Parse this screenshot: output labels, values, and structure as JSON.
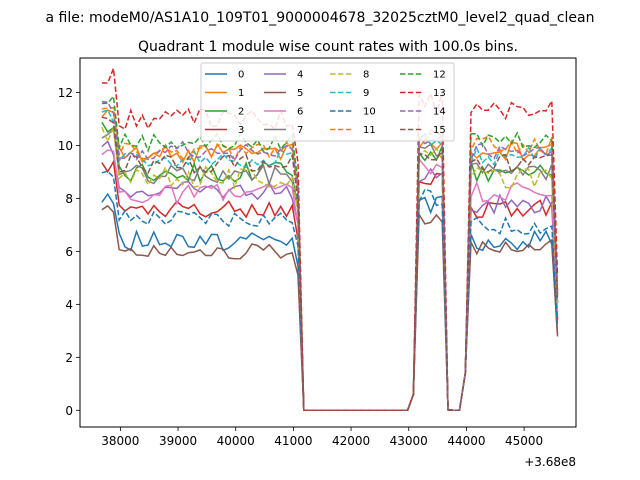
{
  "chart_data": {
    "type": "line",
    "suptitle": "a file: modeM0/AS1A10_109T01_9000004678_32025cztM0_level2_quad_clean",
    "title": "Quadrant 1 module wise count rates with 100.0s bins.",
    "xlabel": "",
    "ylabel": "",
    "x_offset_label": "+3.68e8",
    "xlim": [
      37300,
      45900
    ],
    "ylim": [
      -0.63,
      13.3
    ],
    "x_ticks": [
      38000,
      39000,
      40000,
      41000,
      42000,
      43000,
      44000,
      45000
    ],
    "x_tick_labels": [
      "38000",
      "39000",
      "40000",
      "41000",
      "42000",
      "43000",
      "44000",
      "45000"
    ],
    "y_ticks": [
      0,
      2,
      4,
      6,
      8,
      10,
      12
    ],
    "y_tick_labels": [
      "0",
      "2",
      "4",
      "6",
      "8",
      "10",
      "12"
    ],
    "grid": false,
    "legend_position": "top-center",
    "legend_columns": 4,
    "x": [
      37680,
      37780,
      37880,
      37980,
      38080,
      38180,
      38280,
      38380,
      38480,
      38580,
      38680,
      38780,
      38880,
      38980,
      39080,
      39180,
      39280,
      39380,
      39480,
      39580,
      39680,
      39780,
      39880,
      39980,
      40080,
      40180,
      40280,
      40380,
      40480,
      40580,
      40680,
      40780,
      40880,
      40980,
      41080,
      41180,
      41280,
      41380,
      41480,
      41580,
      41680,
      41780,
      41880,
      41980,
      42080,
      42180,
      42280,
      42380,
      42480,
      42580,
      42680,
      42780,
      42880,
      42980,
      43080,
      43180,
      43280,
      43380,
      43480,
      43580,
      43680,
      43780,
      43880,
      43980,
      44080,
      44180,
      44280,
      44380,
      44480,
      44580,
      44680,
      44780,
      44880,
      44980,
      45080,
      45180,
      45280,
      45380,
      45480,
      45580
    ],
    "series": [
      {
        "name": "0",
        "color": "#1f77b4",
        "dash": "solid",
        "base": 6.4,
        "level2": 7.8,
        "level3": 6.4,
        "amp": 0.38,
        "seed": 0
      },
      {
        "name": "1",
        "color": "#ff7f0e",
        "dash": "solid",
        "base": 9.7,
        "level2": 9.9,
        "level3": 9.8,
        "amp": 0.35,
        "seed": 1
      },
      {
        "name": "2",
        "color": "#2ca02c",
        "dash": "solid",
        "base": 9.0,
        "level2": 9.8,
        "level3": 9.0,
        "amp": 0.4,
        "seed": 2
      },
      {
        "name": "3",
        "color": "#d62728",
        "dash": "solid",
        "base": 7.6,
        "level2": 8.8,
        "level3": 7.6,
        "amp": 0.35,
        "seed": 3
      },
      {
        "name": "4",
        "color": "#9467bd",
        "dash": "solid",
        "base": 8.3,
        "level2": 8.9,
        "level3": 7.8,
        "amp": 0.35,
        "seed": 4
      },
      {
        "name": "5",
        "color": "#8c564b",
        "dash": "solid",
        "base": 6.0,
        "level2": 7.1,
        "level3": 6.2,
        "amp": 0.3,
        "seed": 5
      },
      {
        "name": "6",
        "color": "#e377c2",
        "dash": "solid",
        "base": 8.2,
        "level2": 9.2,
        "level3": 8.2,
        "amp": 0.4,
        "seed": 6
      },
      {
        "name": "7",
        "color": "#7f7f7f",
        "dash": "solid",
        "base": 8.9,
        "level2": 9.8,
        "level3": 9.0,
        "amp": 0.35,
        "seed": 7
      },
      {
        "name": "8",
        "color": "#bcbd22",
        "dash": "dashed",
        "base": 8.8,
        "level2": 9.6,
        "level3": 8.8,
        "amp": 0.4,
        "seed": 8
      },
      {
        "name": "9",
        "color": "#17becf",
        "dash": "dashed",
        "base": 9.5,
        "level2": 10.2,
        "level3": 9.6,
        "amp": 0.35,
        "seed": 9
      },
      {
        "name": "10",
        "color": "#1f77b4",
        "dash": "dashed",
        "base": 7.3,
        "level2": 8.0,
        "level3": 7.0,
        "amp": 0.35,
        "seed": 10
      },
      {
        "name": "11",
        "color": "#ff7f0e",
        "dash": "dashed",
        "base": 9.8,
        "level2": 10.5,
        "level3": 10.0,
        "amp": 0.35,
        "seed": 11
      },
      {
        "name": "12",
        "color": "#2ca02c",
        "dash": "dashed",
        "base": 10.1,
        "level2": 10.6,
        "level3": 10.2,
        "amp": 0.35,
        "seed": 12
      },
      {
        "name": "13",
        "color": "#d62728",
        "dash": "dashed",
        "base": 11.0,
        "level2": 11.6,
        "level3": 11.3,
        "amp": 0.4,
        "seed": 13
      },
      {
        "name": "14",
        "color": "#9467bd",
        "dash": "dashed",
        "base": 9.8,
        "level2": 10.1,
        "level3": 9.8,
        "amp": 0.35,
        "seed": 14
      },
      {
        "name": "15",
        "color": "#8c564b",
        "dash": "dashed",
        "base": 9.3,
        "level2": 9.6,
        "level3": 9.3,
        "amp": 0.35,
        "seed": 15
      }
    ]
  }
}
